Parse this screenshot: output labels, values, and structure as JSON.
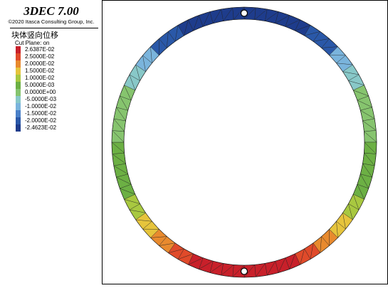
{
  "app": {
    "title": "3DEC 7.00",
    "copyright": "©2020 Itasca Consulting Group, Inc."
  },
  "plot": {
    "title": "块体竖向位移",
    "cut_plane": "Cut Plane: on"
  },
  "legend": [
    {
      "label": "2.6387E-02",
      "color": "#c8202a"
    },
    {
      "label": "2.5000E-02",
      "color": "#e04a2a"
    },
    {
      "label": "2.0000E-02",
      "color": "#e88a2e"
    },
    {
      "label": "1.5000E-02",
      "color": "#e6c43c"
    },
    {
      "label": "1.0000E-02",
      "color": "#a8c840"
    },
    {
      "label": "5.0000E-03",
      "color": "#6cb044"
    },
    {
      "label": "0.0000E+00",
      "color": "#86c46e"
    },
    {
      "label": "-5.0000E-03",
      "color": "#88c8c8"
    },
    {
      "label": "-1.0000E-02",
      "color": "#7ab4dc"
    },
    {
      "label": "-1.5000E-02",
      "color": "#4a80c8"
    },
    {
      "label": "-2.0000E-02",
      "color": "#2a58a8"
    },
    {
      "label": "-2.4623E-02",
      "color": "#1e3c8c"
    }
  ]
}
